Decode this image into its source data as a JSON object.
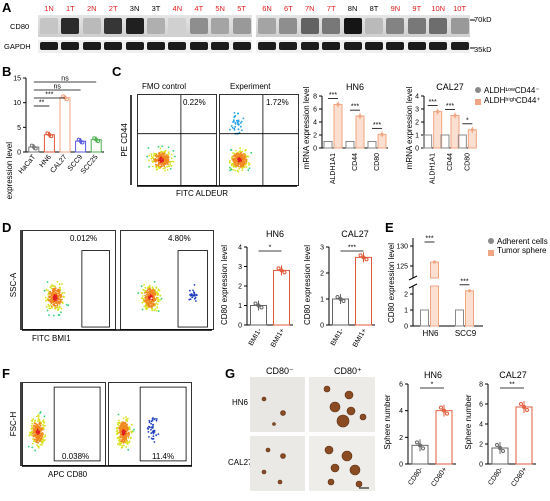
{
  "panelA": {
    "label": "A",
    "lanes_left": [
      "1N",
      "1T",
      "2N",
      "2T",
      "3N",
      "3T",
      "4N",
      "4T",
      "5N",
      "5T"
    ],
    "lanes_right": [
      "6N",
      "6T",
      "7N",
      "7T",
      "8N",
      "8T",
      "9N",
      "9T",
      "10N",
      "10T"
    ],
    "lane_colors": {
      "1N": "#e02020",
      "1T": "#e02020",
      "2N": "#e02020",
      "2T": "#e02020",
      "3N": "#000000",
      "3T": "#000000",
      "4N": "#e02020",
      "4T": "#e02020",
      "5N": "#e02020",
      "5T": "#e02020",
      "6N": "#e02020",
      "6T": "#e02020",
      "7N": "#e02020",
      "7T": "#e02020",
      "8N": "#000000",
      "8T": "#000000",
      "9N": "#e02020",
      "9T": "#e02020",
      "10N": "#e02020",
      "10T": "#e02020"
    },
    "rows": [
      "CD80",
      "GAPDH"
    ],
    "markers": [
      "70kD",
      "35kD"
    ]
  },
  "panelB": {
    "label": "B",
    "ylabel": "CD80 expression level",
    "categories": [
      "HaCaT",
      "HN6",
      "CAL27",
      "SCC9",
      "SCC25"
    ],
    "sig": [
      "ns",
      "ns",
      "***",
      "**"
    ]
  },
  "panelC": {
    "label": "C",
    "flow_titles": [
      "FMO control",
      "Experiment"
    ],
    "flow_pcts": [
      "0.22%",
      "1.72%"
    ],
    "flow_y": "PE CD44",
    "flow_x": "FITC ALDEUR",
    "chart_titles": [
      "HN6",
      "CAL27"
    ],
    "ylabel": "mRNA expression level",
    "categories": [
      "ALDH1A1",
      "CD44",
      "CD80"
    ],
    "legend": [
      "ALDH¹ᵒʷCD44⁻",
      "ALDHʰⁱᵍʰCD44⁺"
    ],
    "sig_hn6": [
      "***",
      "***",
      "***"
    ],
    "sig_cal27": [
      "***",
      "***",
      "*"
    ]
  },
  "panelD": {
    "label": "D",
    "flow_pcts": [
      "0.012%",
      "4.80%"
    ],
    "flow_y": "SSC-A",
    "flow_x": "FITC  BMI1",
    "chart_titles": [
      "HN6",
      "CAL27"
    ],
    "ylabel": "CD80 expression level",
    "categories": [
      "BMI1⁻",
      "BMI1⁺"
    ],
    "sig": [
      "*",
      "***"
    ]
  },
  "panelE": {
    "label": "E",
    "ylabel": "CD80 expression level",
    "categories": [
      "HN6",
      "SCC9"
    ],
    "legend": [
      "Adherent cells",
      "Tumor sphere"
    ],
    "sig": [
      "***",
      "***"
    ],
    "yticks_top": [
      "125",
      "130"
    ],
    "yticks_bottom": [
      "0",
      "1",
      "2"
    ]
  },
  "panelF": {
    "label": "F",
    "flow_pcts": [
      "0.038%",
      "11.4%"
    ],
    "flow_y": "FSC-H",
    "flow_x": "APC CD80"
  },
  "panelG": {
    "label": "G",
    "col_titles": [
      "CD80⁻",
      "CD80⁺"
    ],
    "row_titles": [
      "HN6",
      "CAL27"
    ],
    "chart_titles": [
      "HN6",
      "CAL27"
    ],
    "ylabel": "Sphere number",
    "categories": [
      "CD80⁻",
      "CD80⁺"
    ],
    "sig": [
      "*",
      "**"
    ]
  },
  "chart_data": [
    {
      "type": "bar",
      "title": "",
      "ylabel": "CD80 expression level",
      "categories": [
        "HaCaT",
        "HN6",
        "CAL27",
        "SCC9",
        "SCC25"
      ],
      "values": [
        1.0,
        3.5,
        11.0,
        2.2,
        2.5
      ],
      "ylim": [
        0,
        15
      ]
    },
    {
      "type": "bar",
      "title": "HN6",
      "ylabel": "mRNA expression level",
      "categories": [
        "ALDH1A1",
        "CD44",
        "CD80"
      ],
      "series": [
        {
          "name": "ALDHlowCD44-",
          "values": [
            1,
            1,
            1
          ]
        },
        {
          "name": "ALDHhighCD44+",
          "values": [
            6.7,
            4.9,
            2.1
          ]
        }
      ],
      "ylim": [
        0,
        8
      ]
    },
    {
      "type": "bar",
      "title": "CAL27",
      "ylabel": "mRNA expression level",
      "categories": [
        "ALDH1A1",
        "CD44",
        "CD80"
      ],
      "series": [
        {
          "name": "ALDHlowCD44-",
          "values": [
            1,
            1,
            1
          ]
        },
        {
          "name": "ALDHhighCD44+",
          "values": [
            2.8,
            2.5,
            1.4
          ]
        }
      ],
      "ylim": [
        0,
        4
      ]
    },
    {
      "type": "bar",
      "title": "HN6",
      "ylabel": "CD80 expression level",
      "categories": [
        "BMI1-",
        "BMI1+"
      ],
      "values": [
        1.0,
        2.8
      ],
      "ylim": [
        0,
        4
      ]
    },
    {
      "type": "bar",
      "title": "CAL27",
      "ylabel": "CD80 expression level",
      "categories": [
        "BMI1-",
        "BMI1+"
      ],
      "values": [
        1.0,
        2.6
      ],
      "ylim": [
        0,
        3
      ]
    },
    {
      "type": "bar",
      "title": "",
      "ylabel": "CD80 expression level",
      "categories": [
        "HN6",
        "SCC9"
      ],
      "series": [
        {
          "name": "Adherent cells",
          "values": [
            1,
            1
          ]
        },
        {
          "name": "Tumor sphere",
          "values": [
            126,
            2.2
          ]
        }
      ],
      "ylim": [
        0,
        130
      ]
    },
    {
      "type": "bar",
      "title": "HN6",
      "ylabel": "Sphere number",
      "categories": [
        "CD80-",
        "CD80+"
      ],
      "values": [
        1.4,
        4.0
      ],
      "ylim": [
        0,
        6
      ]
    },
    {
      "type": "bar",
      "title": "CAL27",
      "ylabel": "Sphere number",
      "categories": [
        "CD80-",
        "CD80+"
      ],
      "values": [
        1.6,
        5.7
      ],
      "ylim": [
        0,
        8
      ]
    }
  ]
}
